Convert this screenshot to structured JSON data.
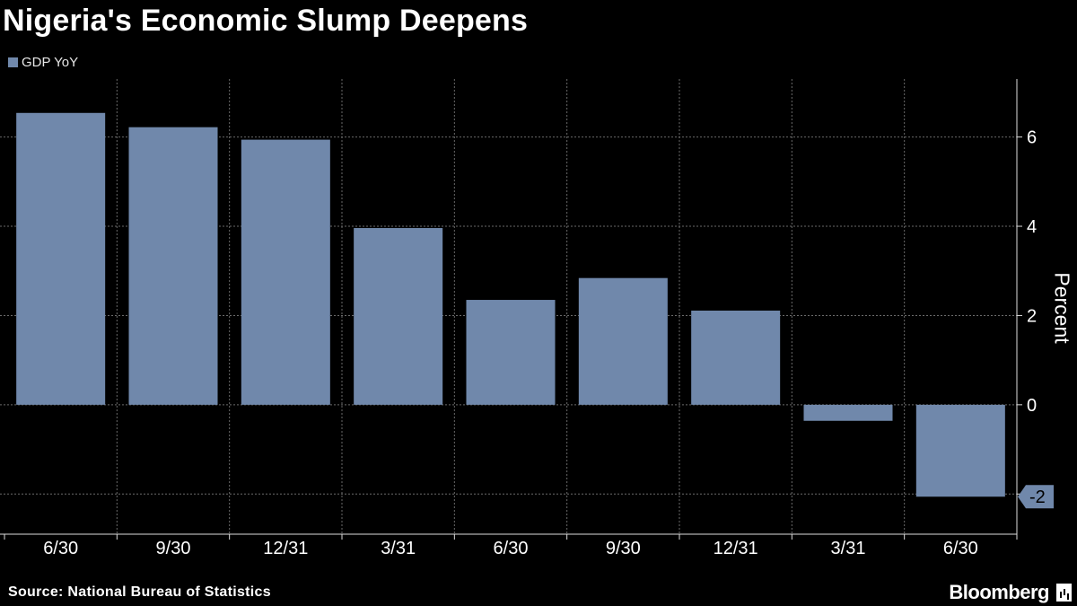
{
  "title": "Nigeria's Economic Slump Deepens",
  "legend": {
    "label": "GDP YoY"
  },
  "source": "Source: National Bureau of Statistics",
  "brand": "Bloomberg",
  "logo_icon": "bloomberg-terminal-icon",
  "colors": {
    "background": "#000000",
    "bar": "#7088ab",
    "grid": "#6a6a6a",
    "axis": "#dcdcdc",
    "text": "#ffffff"
  },
  "chart_data": {
    "type": "bar",
    "categories": [
      "6/30",
      "9/30",
      "12/31",
      "3/31",
      "6/30",
      "9/30",
      "12/31",
      "3/31",
      "6/30"
    ],
    "series": [
      {
        "name": "GDP YoY",
        "values": [
          6.54,
          6.22,
          5.94,
          3.96,
          2.35,
          2.84,
          2.11,
          -0.36,
          -2.06
        ]
      }
    ],
    "title": "Nigeria's Economic Slump Deepens",
    "xlabel": "",
    "ylabel": "Percent",
    "ylim": [
      -2.9,
      7.3
    ],
    "yticks": [
      -2,
      0,
      2,
      4,
      6
    ],
    "ytick_labels": [
      "",
      "0",
      "2",
      "4",
      "6"
    ],
    "callout": {
      "index": 8,
      "label": "-2"
    },
    "grid": true,
    "legend_position": "top-left"
  }
}
